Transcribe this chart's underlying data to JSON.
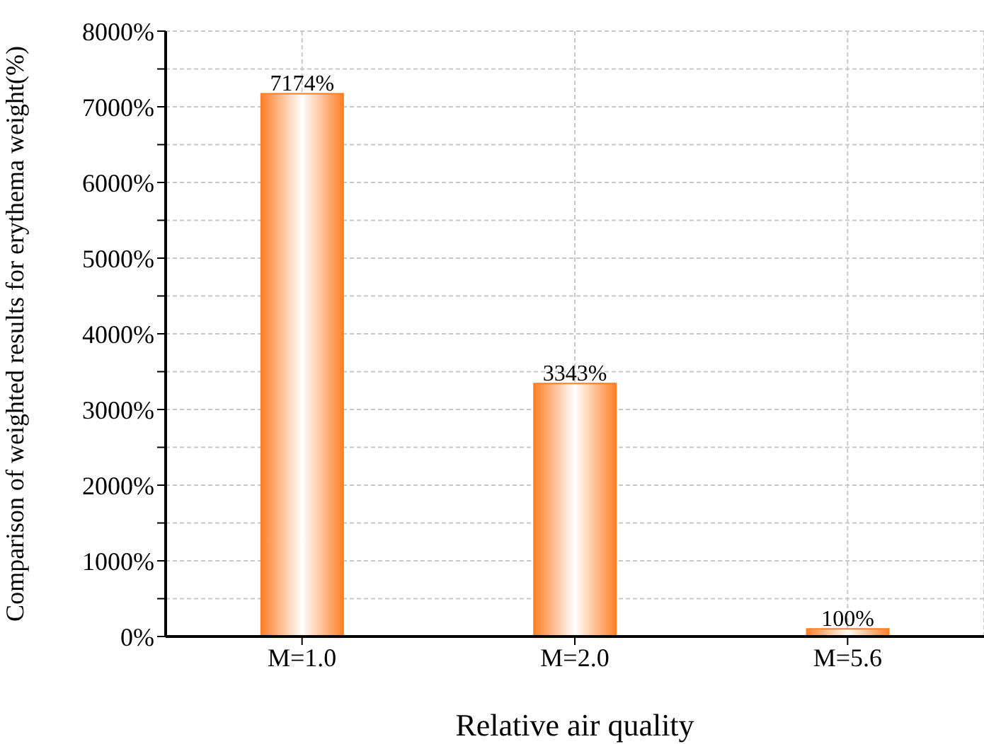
{
  "chart_data": {
    "type": "bar",
    "xlabel": "Relative air quality",
    "ylabel": "Comparison of weighted results for erythema weight(%)",
    "categories": [
      "M=1.0",
      "M=2.0",
      "M=5.6"
    ],
    "values": [
      7174,
      3343,
      100
    ],
    "value_labels": [
      "7174%",
      "3343%",
      "100%"
    ],
    "color": "#ff7f27",
    "ylim": [
      0,
      8000
    ],
    "yticks": [
      {
        "value": 0,
        "label": "0%"
      },
      {
        "value": 500,
        "label": null
      },
      {
        "value": 1000,
        "label": "1000%"
      },
      {
        "value": 1500,
        "label": null
      },
      {
        "value": 2000,
        "label": "2000%"
      },
      {
        "value": 2500,
        "label": null
      },
      {
        "value": 3000,
        "label": "3000%"
      },
      {
        "value": 3500,
        "label": null
      },
      {
        "value": 4000,
        "label": "4000%"
      },
      {
        "value": 4500,
        "label": null
      },
      {
        "value": 5000,
        "label": "5000%"
      },
      {
        "value": 5500,
        "label": null
      },
      {
        "value": 6000,
        "label": "6000%"
      },
      {
        "value": 6500,
        "label": null
      },
      {
        "value": 7000,
        "label": "7000%"
      },
      {
        "value": 7500,
        "label": null
      },
      {
        "value": 8000,
        "label": "8000%"
      }
    ],
    "grid": true
  }
}
